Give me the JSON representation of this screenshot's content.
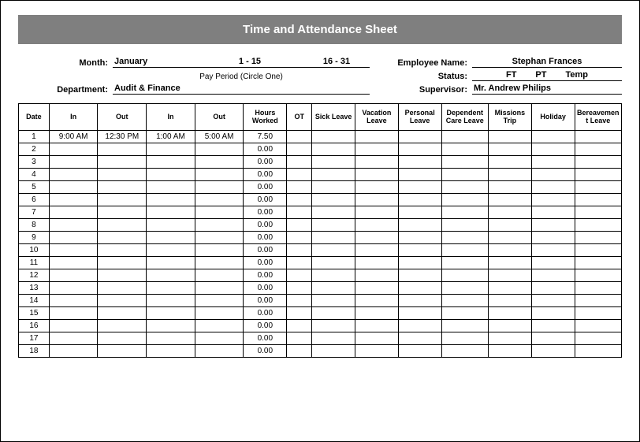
{
  "title": "Time and Attendance Sheet",
  "labels": {
    "month": "Month:",
    "department": "Department:",
    "pay_period_caption": "Pay Period (Circle One)",
    "employee_name": "Employee Name:",
    "status": "Status:",
    "supervisor": "Supervisor:"
  },
  "form": {
    "month": "January",
    "period1": "1 - 15",
    "period2": "16 - 31",
    "department": "Audit & Finance",
    "employee_name": "Stephan Frances",
    "status_ft": "FT",
    "status_pt": "PT",
    "status_temp": "Temp",
    "supervisor": "Mr. Andrew Philips"
  },
  "columns": [
    "Date",
    "In",
    "Out",
    "In",
    "Out",
    "Hours Worked",
    "OT",
    "Sick Leave",
    "Vacation Leave",
    "Personal Leave",
    "Dependent Care Leave",
    "Missions Trip",
    "Holiday",
    "Bereavement Leave"
  ],
  "rows": [
    {
      "date": "1",
      "in1": "9:00 AM",
      "out1": "12:30 PM",
      "in2": "1:00 AM",
      "out2": "5:00 AM",
      "hw": "7.50"
    },
    {
      "date": "2",
      "hw": "0.00"
    },
    {
      "date": "3",
      "hw": "0.00"
    },
    {
      "date": "4",
      "hw": "0.00"
    },
    {
      "date": "5",
      "hw": "0.00"
    },
    {
      "date": "6",
      "hw": "0.00"
    },
    {
      "date": "7",
      "hw": "0.00"
    },
    {
      "date": "8",
      "hw": "0.00"
    },
    {
      "date": "9",
      "hw": "0.00"
    },
    {
      "date": "10",
      "hw": "0.00"
    },
    {
      "date": "11",
      "hw": "0.00"
    },
    {
      "date": "12",
      "hw": "0.00"
    },
    {
      "date": "13",
      "hw": "0.00"
    },
    {
      "date": "14",
      "hw": "0.00"
    },
    {
      "date": "15",
      "hw": "0.00"
    },
    {
      "date": "16",
      "hw": "0.00"
    },
    {
      "date": "17",
      "hw": "0.00"
    },
    {
      "date": "18",
      "hw": "0.00"
    }
  ],
  "colors": {
    "title_bg": "#7f7f7f",
    "title_fg": "#ffffff",
    "border": "#000000",
    "background": "#ffffff"
  },
  "typography": {
    "base_font": "Arial",
    "title_size_pt": 15,
    "meta_size_pt": 11,
    "table_header_size_pt": 9,
    "table_body_size_pt": 10
  }
}
